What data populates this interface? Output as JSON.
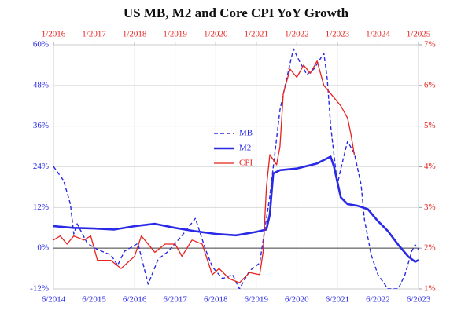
{
  "chart_data": {
    "type": "line",
    "title": "US MB, M2 and Core CPI YoY Growth",
    "xlim": [
      "6/2014",
      "6/2023"
    ],
    "xticks": [
      "6/2014",
      "6/2015",
      "6/2016",
      "6/2017",
      "6/2018",
      "6/2019",
      "6/2020",
      "6/2021",
      "6/2022",
      "6/2023"
    ],
    "x2lim": [
      "1/2016",
      "1/2025"
    ],
    "x2ticks": [
      "1/2016",
      "1/2017",
      "1/2018",
      "1/2019",
      "1/2020",
      "1/2021",
      "1/2022",
      "1/2023",
      "1/2024",
      "1/2025"
    ],
    "ylim": [
      -12,
      60
    ],
    "yticks": [
      {
        "value": -12,
        "label": "-12%"
      },
      {
        "value": 0,
        "label": "0%"
      },
      {
        "value": 12,
        "label": "12%"
      },
      {
        "value": 24,
        "label": "24%"
      },
      {
        "value": 36,
        "label": "36%"
      },
      {
        "value": 48,
        "label": "48%"
      },
      {
        "value": 60,
        "label": "60%"
      }
    ],
    "y2lim": [
      1,
      7
    ],
    "y2ticks": [
      {
        "value": 1,
        "label": "1%"
      },
      {
        "value": 2,
        "label": "2%"
      },
      {
        "value": 3,
        "label": "3%"
      },
      {
        "value": 4,
        "label": "4%"
      },
      {
        "value": 5,
        "label": "5%"
      },
      {
        "value": 6,
        "label": "6%"
      },
      {
        "value": 7,
        "label": "7%"
      }
    ],
    "grid": true,
    "hline": 0,
    "legend": "center",
    "series": [
      {
        "name": "MB",
        "color": "#2a2ae6",
        "style": "dashed",
        "axis": "y",
        "xaxis": "x",
        "x": [
          "6/2014",
          "9/2014",
          "11/2014",
          "12/2014",
          "1/2015",
          "4/2015",
          "7/2015",
          "11/2015",
          "1/2016",
          "3/2016",
          "7/2016",
          "10/2016",
          "1/2017",
          "4/2017",
          "8/2017",
          "12/2017",
          "3/2018",
          "5/2018",
          "8/2018",
          "11/2018",
          "1/2019",
          "4/2019",
          "7/2019",
          "10/2019",
          "1/2020",
          "3/2020",
          "5/2020",
          "7/2020",
          "9/2020",
          "11/2020",
          "2/2021",
          "3/2021",
          "4/2021",
          "6/2021",
          "7/2021",
          "9/2021",
          "11/2021",
          "1/2022",
          "2/2022",
          "4/2022",
          "6/2022",
          "9/2022",
          "12/2022",
          "2/2023",
          "4/2023",
          "5/2023",
          "6/2023"
        ],
        "values": [
          24.1,
          19.9,
          13,
          4.2,
          7.2,
          1.4,
          -0.4,
          -2,
          -5,
          -0.9,
          1.4,
          -10.6,
          -3.2,
          -0.9,
          3.7,
          8.8,
          -0.4,
          -5.5,
          -9,
          -7.8,
          -12,
          -6.7,
          -4.4,
          15.3,
          40.8,
          50,
          58.8,
          54.7,
          51.2,
          52.8,
          57.5,
          50,
          36.2,
          18.8,
          23.4,
          31.5,
          28,
          18.8,
          8.4,
          -2,
          -7.8,
          -12,
          -12,
          -7.8,
          -0.9,
          1,
          -0.4
        ]
      },
      {
        "name": "M2",
        "color": "#2a2ae6",
        "style": "thick",
        "axis": "y",
        "xaxis": "x",
        "x": [
          "6/2014",
          "12/2014",
          "6/2015",
          "12/2015",
          "6/2016",
          "12/2016",
          "6/2017",
          "12/2017",
          "6/2018",
          "12/2018",
          "6/2019",
          "9/2019",
          "10/2019",
          "11/2019",
          "1/2020",
          "6/2020",
          "12/2020",
          "3/2021",
          "4/2021",
          "5/2021",
          "7/2021",
          "9/2021",
          "12/2021",
          "3/2022",
          "6/2022",
          "9/2022",
          "12/2022",
          "3/2023",
          "5/2023",
          "6/2023"
        ],
        "values": [
          6.5,
          6,
          5.8,
          5.5,
          6.5,
          7.2,
          6,
          5,
          4.2,
          3.8,
          4.8,
          5.5,
          10,
          22,
          23,
          23.5,
          25,
          26.5,
          27,
          24,
          15,
          13,
          12.5,
          11.5,
          8,
          5,
          1,
          -2.5,
          -4,
          -3.5
        ]
      },
      {
        "name": "CPI",
        "color": "#e8231f",
        "style": "solid",
        "axis": "y2",
        "xaxis": "x2",
        "x": [
          "1/2016",
          "3/2016",
          "5/2016",
          "7/2016",
          "10/2016",
          "12/2016",
          "2/2017",
          "6/2017",
          "9/2017",
          "1/2018",
          "3/2018",
          "7/2018",
          "10/2018",
          "1/2019",
          "3/2019",
          "6/2019",
          "9/2019",
          "12/2019",
          "2/2020",
          "5/2020",
          "8/2020",
          "11/2020",
          "2/2021",
          "3/2021",
          "4/2021",
          "5/2021",
          "7/2021",
          "8/2021",
          "9/2021",
          "11/2021",
          "1/2022",
          "3/2022",
          "5/2022",
          "7/2022",
          "9/2022",
          "11/2022",
          "1/2023",
          "2/2023",
          "4/2023",
          "5/2023",
          "6/2023"
        ],
        "values": [
          2.2,
          2.3,
          2.1,
          2.3,
          2.2,
          2.3,
          1.7,
          1.7,
          1.5,
          1.8,
          2.3,
          1.9,
          2.1,
          2.1,
          1.8,
          2.2,
          2.1,
          1.35,
          1.5,
          1.25,
          1.15,
          1.4,
          1.35,
          1.9,
          3.5,
          4.3,
          4.05,
          4.5,
          5.8,
          6.4,
          6.2,
          6.5,
          6.3,
          6.6,
          6,
          5.8,
          5.6,
          5.5,
          5.2,
          4.8,
          4.3
        ]
      }
    ]
  }
}
